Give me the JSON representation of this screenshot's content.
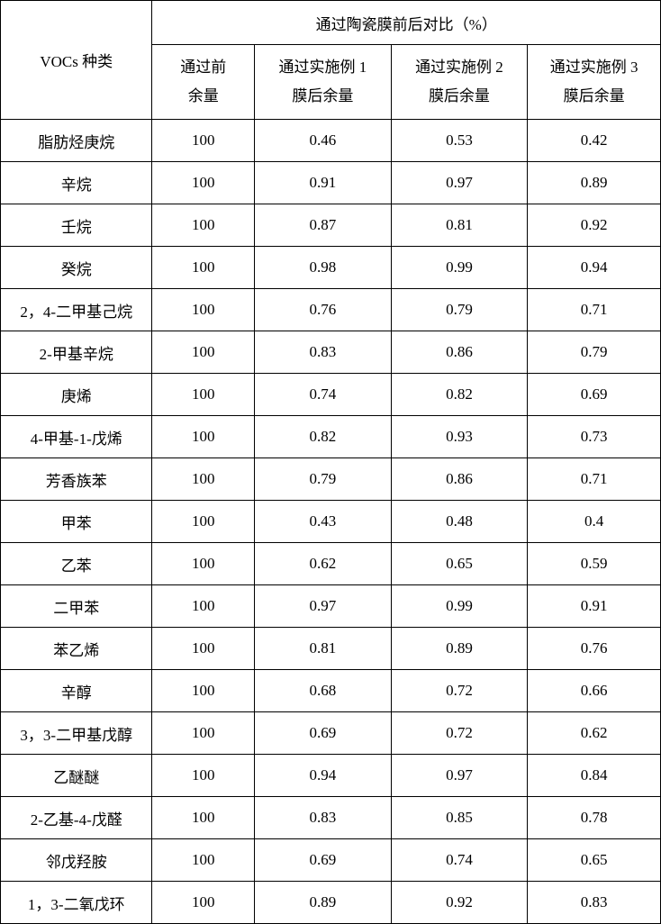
{
  "table": {
    "header": {
      "col0": "VOCs 种类",
      "col_span": "通过陶瓷膜前后对比（%）",
      "sub": [
        "通过前<br>余量",
        "通过实施例 1<br>膜后余量",
        "通过实施例 2<br>膜后余量",
        "通过实施例 3<br>膜后余量"
      ]
    },
    "rows": [
      [
        "脂肪烃庚烷",
        "100",
        "0.46",
        "0.53",
        "0.42"
      ],
      [
        "辛烷",
        "100",
        "0.91",
        "0.97",
        "0.89"
      ],
      [
        "壬烷",
        "100",
        "0.87",
        "0.81",
        "0.92"
      ],
      [
        "癸烷",
        "100",
        "0.98",
        "0.99",
        "0.94"
      ],
      [
        "2，4-二甲基己烷",
        "100",
        "0.76",
        "0.79",
        "0.71"
      ],
      [
        "2-甲基辛烷",
        "100",
        "0.83",
        "0.86",
        "0.79"
      ],
      [
        "庚烯",
        "100",
        "0.74",
        "0.82",
        "0.69"
      ],
      [
        "4-甲基-1-戊烯",
        "100",
        "0.82",
        "0.93",
        "0.73"
      ],
      [
        "芳香族苯",
        "100",
        "0.79",
        "0.86",
        "0.71"
      ],
      [
        "甲苯",
        "100",
        "0.43",
        "0.48",
        "0.4"
      ],
      [
        "乙苯",
        "100",
        "0.62",
        "0.65",
        "0.59"
      ],
      [
        "二甲苯",
        "100",
        "0.97",
        "0.99",
        "0.91"
      ],
      [
        "苯乙烯",
        "100",
        "0.81",
        "0.89",
        "0.76"
      ],
      [
        "辛醇",
        "100",
        "0.68",
        "0.72",
        "0.66"
      ],
      [
        "3，3-二甲基戊醇",
        "100",
        "0.69",
        "0.72",
        "0.62"
      ],
      [
        "乙醚醚",
        "100",
        "0.94",
        "0.97",
        "0.84"
      ],
      [
        "2-乙基-4-戊醛",
        "100",
        "0.83",
        "0.85",
        "0.78"
      ],
      [
        "邻戊羟胺",
        "100",
        "0.69",
        "0.74",
        "0.65"
      ],
      [
        "1，3-二氧戊环",
        "100",
        "0.89",
        "0.92",
        "0.83"
      ]
    ]
  }
}
